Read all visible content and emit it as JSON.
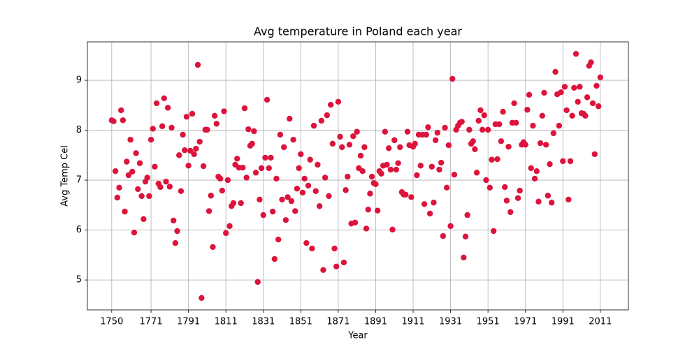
{
  "chart_data": {
    "type": "scatter",
    "title": "Avg temperature in Poland each year",
    "xlabel": "Year",
    "ylabel": "Avg Temp Cel",
    "color": "#dc143c",
    "grid": true,
    "x": [
      1750,
      1751,
      1752,
      1753,
      1754,
      1755,
      1756,
      1757,
      1758,
      1759,
      1760,
      1761,
      1762,
      1763,
      1764,
      1765,
      1766,
      1767,
      1768,
      1769,
      1770,
      1771,
      1772,
      1773,
      1774,
      1775,
      1776,
      1777,
      1778,
      1779,
      1780,
      1781,
      1782,
      1783,
      1784,
      1785,
      1786,
      1787,
      1788,
      1789,
      1790,
      1791,
      1792,
      1793,
      1794,
      1795,
      1796,
      1797,
      1798,
      1799,
      1800,
      1801,
      1802,
      1803,
      1804,
      1805,
      1806,
      1807,
      1808,
      1809,
      1810,
      1811,
      1812,
      1813,
      1814,
      1815,
      1816,
      1817,
      1818,
      1819,
      1820,
      1821,
      1822,
      1823,
      1824,
      1825,
      1826,
      1827,
      1828,
      1829,
      1830,
      1831,
      1832,
      1833,
      1834,
      1835,
      1836,
      1837,
      1838,
      1839,
      1840,
      1841,
      1842,
      1843,
      1844,
      1845,
      1846,
      1847,
      1848,
      1849,
      1850,
      1851,
      1852,
      1853,
      1854,
      1855,
      1856,
      1857,
      1858,
      1859,
      1860,
      1861,
      1862,
      1863,
      1864,
      1865,
      1866,
      1867,
      1868,
      1869,
      1870,
      1871,
      1872,
      1873,
      1874,
      1875,
      1876,
      1877,
      1878,
      1879,
      1880,
      1881,
      1882,
      1883,
      1884,
      1885,
      1886,
      1887,
      1888,
      1889,
      1890,
      1891,
      1892,
      1893,
      1894,
      1895,
      1896,
      1897,
      1898,
      1899,
      1900,
      1901,
      1902,
      1903,
      1904,
      1905,
      1906,
      1907,
      1908,
      1909,
      1910,
      1911,
      1912,
      1913,
      1914,
      1915,
      1916,
      1917,
      1918,
      1919,
      1920,
      1921,
      1922,
      1923,
      1924,
      1925,
      1926,
      1927,
      1928,
      1929,
      1930,
      1931,
      1932,
      1933,
      1934,
      1935,
      1936,
      1937,
      1938,
      1939,
      1940,
      1941,
      1942,
      1943,
      1944,
      1945,
      1946,
      1947,
      1948,
      1949,
      1950,
      1951,
      1952,
      1953,
      1954,
      1955,
      1956,
      1957,
      1958,
      1959,
      1960,
      1961,
      1962,
      1963,
      1964,
      1965,
      1966,
      1967,
      1968,
      1969,
      1970,
      1971,
      1972,
      1973,
      1974,
      1975,
      1976,
      1977,
      1978,
      1979,
      1980,
      1981,
      1982,
      1983,
      1984,
      1985,
      1986,
      1987,
      1988,
      1989,
      1990,
      1991,
      1992,
      1993,
      1994,
      1995,
      1996,
      1997,
      1998,
      1999,
      2000,
      2001,
      2002,
      2003,
      2004,
      2005,
      2006,
      2007,
      2008,
      2009,
      2010,
      2011
    ],
    "values": [
      8.2,
      8.18,
      7.18,
      6.65,
      6.85,
      8.4,
      8.2,
      6.37,
      7.37,
      7.1,
      7.81,
      7.17,
      5.95,
      7.54,
      6.82,
      7.34,
      6.68,
      6.22,
      6.97,
      7.05,
      6.68,
      7.81,
      8.03,
      7.27,
      8.54,
      6.93,
      6.86,
      8.08,
      8.64,
      6.97,
      8.45,
      6.87,
      8.05,
      6.19,
      5.74,
      5.98,
      7.5,
      6.78,
      7.91,
      7.6,
      8.27,
      7.29,
      7.59,
      8.33,
      7.52,
      7.63,
      9.31,
      7.77,
      4.64,
      7.28,
      8.01,
      8.01,
      6.38,
      6.69,
      5.66,
      8.29,
      8.13,
      7.07,
      7.03,
      6.79,
      8.38,
      5.94,
      7.0,
      6.08,
      6.48,
      6.54,
      7.31,
      7.43,
      7.25,
      6.54,
      7.25,
      8.44,
      7.05,
      8.02,
      7.69,
      7.73,
      7.98,
      7.15,
      4.96,
      6.61,
      7.24,
      6.3,
      7.45,
      8.61,
      7.24,
      7.45,
      6.37,
      5.42,
      7.03,
      5.81,
      7.91,
      6.61,
      7.66,
      6.2,
      6.66,
      8.23,
      6.58,
      7.81,
      6.38,
      6.83,
      7.24,
      7.52,
      6.75,
      7.03,
      5.74,
      6.89,
      7.41,
      5.63,
      8.09,
      6.78,
      7.31,
      6.48,
      8.19,
      5.2,
      7.05,
      8.3,
      6.68,
      8.51,
      7.73,
      5.63,
      5.27,
      8.57,
      7.87,
      7.66,
      5.35,
      6.8,
      7.07,
      7.71,
      6.13,
      7.88,
      6.15,
      7.97,
      7.24,
      7.49,
      7.18,
      7.66,
      6.03,
      6.41,
      6.73,
      7.07,
      6.94,
      6.92,
      6.39,
      7.18,
      7.13,
      7.29,
      7.97,
      7.31,
      7.64,
      7.21,
      6.01,
      7.8,
      7.21,
      7.34,
      7.66,
      6.76,
      6.71,
      6.71,
      7.97,
      7.7,
      6.66,
      7.67,
      7.73,
      7.1,
      7.91,
      7.29,
      7.91,
      6.52,
      7.91,
      8.06,
      6.33,
      7.27,
      6.55,
      7.8,
      7.95,
      7.21,
      7.35,
      5.88,
      8.05,
      6.85,
      7.7,
      6.08,
      9.03,
      7.11,
      8.01,
      8.09,
      8.15,
      8.17,
      5.45,
      5.87,
      6.3,
      8.01,
      7.73,
      7.78,
      7.62,
      7.15,
      8.19,
      8.4,
      8.01,
      8.3,
      7.0,
      8.01,
      6.85,
      7.41,
      5.98,
      8.12,
      7.42,
      8.12,
      7.78,
      8.37,
      6.86,
      6.59,
      7.67,
      6.36,
      8.15,
      8.54,
      8.15,
      6.64,
      6.79,
      7.71,
      7.76,
      7.71,
      8.41,
      8.71,
      7.24,
      8.09,
      7.03,
      7.18,
      6.57,
      7.74,
      8.29,
      8.75,
      7.71,
      6.69,
      7.32,
      6.55,
      7.94,
      9.17,
      8.72,
      8.09,
      8.76,
      7.38,
      8.87,
      8.4,
      6.61,
      7.38,
      8.29,
      8.85,
      9.53,
      8.57,
      8.87,
      8.34,
      8.33,
      8.29,
      8.66,
      9.29,
      9.36,
      8.54,
      7.52,
      8.89,
      8.48,
      9.06
    ],
    "xlim": [
      1737,
      2026
    ],
    "xticks": [
      1750,
      1771,
      1791,
      1811,
      1831,
      1851,
      1871,
      1891,
      1911,
      1931,
      1951,
      1971,
      1991,
      2011
    ],
    "ylim": [
      4.4,
      9.77
    ],
    "yticks": [
      5,
      6,
      7,
      8,
      9
    ]
  }
}
